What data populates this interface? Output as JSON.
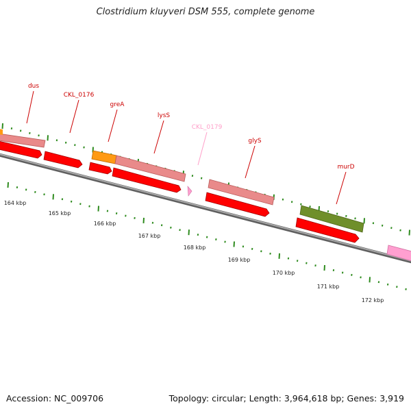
{
  "title": "Clostridium kluyveri DSM 555, complete genome",
  "accession": "Accession: NC_009706",
  "summary": "Topology: circular; Length: 3,964,618 bp; Genes: 3,919",
  "colors": {
    "backbone": "#8c8c8c",
    "tick": "#2e8b1e",
    "label_red": "#cc0000",
    "label_pink": "#ff9fc9",
    "cds_red": "#ff0000",
    "salmon": "#e98a8a",
    "orange": "#ff9a14",
    "olive": "#6f8f2a",
    "pink": "#ff9fd0"
  },
  "genes": [
    {
      "name": "dus",
      "color": "red"
    },
    {
      "name": "CKL_0176",
      "color": "red"
    },
    {
      "name": "greA",
      "color": "red"
    },
    {
      "name": "lysS",
      "color": "red"
    },
    {
      "name": "CKL_0179",
      "color": "pink"
    },
    {
      "name": "glyS",
      "color": "red"
    },
    {
      "name": "murD",
      "color": "red"
    }
  ],
  "scale_labels": [
    "164 kbp",
    "165 kbp",
    "166 kbp",
    "167 kbp",
    "168 kbp",
    "169 kbp",
    "170 kbp",
    "171 kbp",
    "172 kbp"
  ]
}
